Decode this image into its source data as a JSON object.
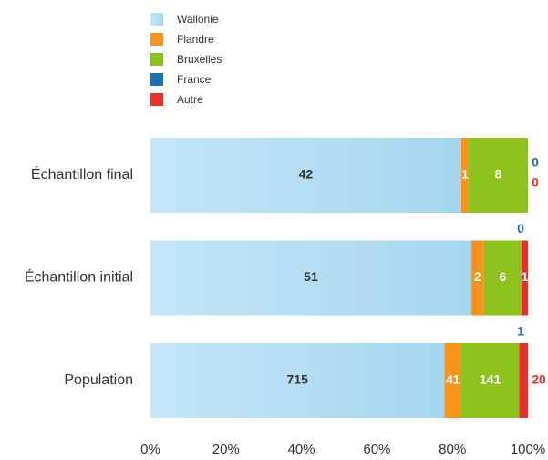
{
  "chart_data": {
    "type": "bar",
    "orientation": "horizontal",
    "stacking": "percent",
    "categories": [
      "Échantillon final",
      "Échantillon initial",
      "Population"
    ],
    "series": [
      {
        "name": "Wallonie",
        "color": "#b3ddf4",
        "values": [
          42,
          51,
          715
        ]
      },
      {
        "name": "Flandre",
        "color": "#f7941d",
        "values": [
          1,
          2,
          41
        ]
      },
      {
        "name": "Bruxelles",
        "color": "#8dc21f",
        "values": [
          8,
          6,
          141
        ]
      },
      {
        "name": "France",
        "color": "#1f6fb5",
        "values": [
          0,
          0,
          1
        ]
      },
      {
        "name": "Autre",
        "color": "#e8312a",
        "values": [
          0,
          1,
          20
        ]
      }
    ],
    "xlim": [
      0,
      100
    ],
    "xticks": [
      {
        "value": 0,
        "label": "0%"
      },
      {
        "value": 20,
        "label": "20%"
      },
      {
        "value": 40,
        "label": "40%"
      },
      {
        "value": 60,
        "label": "60%"
      },
      {
        "value": 80,
        "label": "80%"
      },
      {
        "value": 100,
        "label": "100%"
      }
    ],
    "legend": "top-left"
  }
}
